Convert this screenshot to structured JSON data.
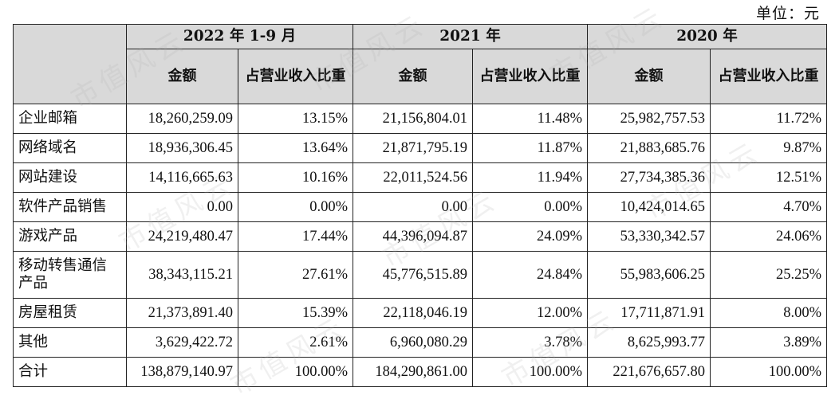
{
  "unit_label": "单位：元",
  "watermark_text": "市值风云",
  "periods": [
    {
      "label": "2022 年 1-9 月"
    },
    {
      "label": "2021 年"
    },
    {
      "label": "2020 年"
    }
  ],
  "sub_headers": {
    "amount": "金额",
    "share": "占营业收入比重"
  },
  "rows": [
    {
      "category": "企业邮箱",
      "values": [
        "18,260,259.09",
        "13.15%",
        "21,156,804.01",
        "11.48%",
        "25,982,757.53",
        "11.72%"
      ]
    },
    {
      "category": "网络域名",
      "values": [
        "18,936,306.45",
        "13.64%",
        "21,871,795.19",
        "11.87%",
        "21,883,685.76",
        "9.87%"
      ]
    },
    {
      "category": "网站建设",
      "values": [
        "14,116,665.63",
        "10.16%",
        "22,011,524.56",
        "11.94%",
        "27,734,385.36",
        "12.51%"
      ]
    },
    {
      "category": "软件产品销售",
      "values": [
        "0.00",
        "0.00%",
        "0.00",
        "0.00%",
        "10,424,014.65",
        "4.70%"
      ]
    },
    {
      "category": "游戏产品",
      "values": [
        "24,219,480.47",
        "17.44%",
        "44,396,094.87",
        "24.09%",
        "53,330,342.57",
        "24.06%"
      ]
    },
    {
      "category": "移动转售通信产品",
      "values": [
        "38,343,115.21",
        "27.61%",
        "45,776,515.89",
        "24.84%",
        "55,983,606.25",
        "25.25%"
      ]
    },
    {
      "category": "房屋租赁",
      "values": [
        "21,373,891.40",
        "15.39%",
        "22,118,046.19",
        "12.00%",
        "17,711,871.91",
        "8.00%"
      ]
    },
    {
      "category": "其他",
      "values": [
        "3,629,422.72",
        "2.61%",
        "6,960,080.29",
        "3.78%",
        "8,625,993.77",
        "3.89%"
      ]
    },
    {
      "category": "合计",
      "values": [
        "138,879,140.97",
        "100.00%",
        "184,290,861.00",
        "100.00%",
        "221,676,657.80",
        "100.00%"
      ]
    }
  ],
  "colors": {
    "header_bg": "#d9d9d9",
    "border": "#222222",
    "text": "#111111"
  }
}
